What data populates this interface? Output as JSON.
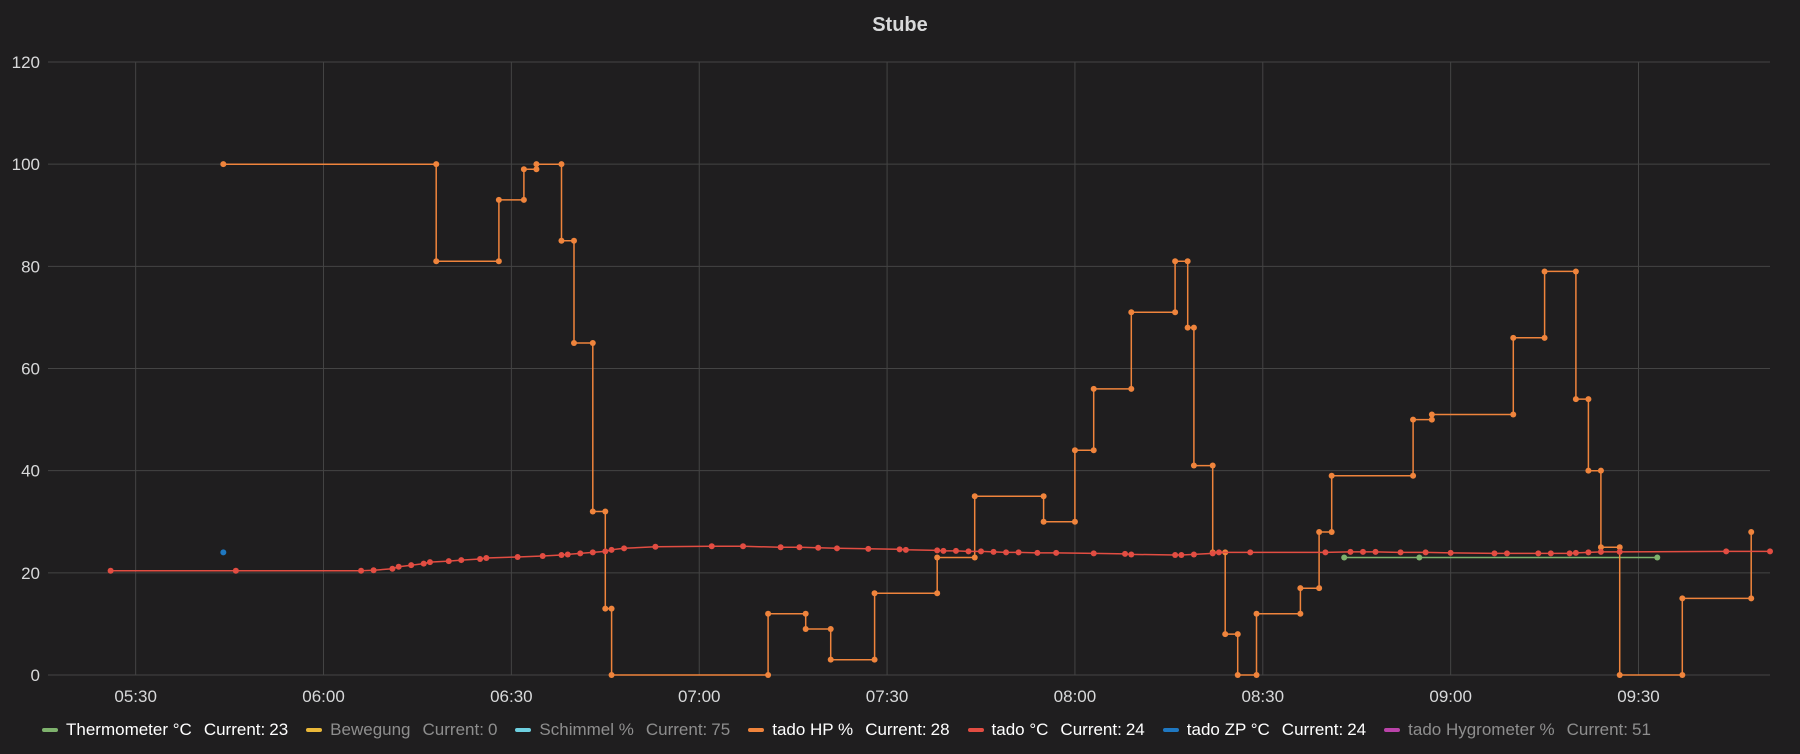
{
  "panel": {
    "title": "Stube"
  },
  "legend_current_label": "Current:",
  "chart_data": {
    "type": "line",
    "title": "Stube",
    "xlabel": "",
    "ylabel": "",
    "ylim": [
      0,
      120
    ],
    "yticks": [
      0,
      20,
      40,
      60,
      80,
      100,
      120
    ],
    "xlim": [
      "05:16",
      "09:51"
    ],
    "xticks": [
      "05:30",
      "06:00",
      "06:30",
      "07:00",
      "07:30",
      "08:00",
      "08:30",
      "09:00",
      "09:30"
    ],
    "grid": true,
    "legend_position": "bottom",
    "series": [
      {
        "name": "Thermometer °C",
        "color": "#7eb26d",
        "current": "23",
        "dim": false,
        "step": false,
        "points": [
          [
            "08:43",
            23
          ],
          [
            "08:55",
            23
          ],
          [
            "09:33",
            23
          ]
        ]
      },
      {
        "name": "Bewegung",
        "color": "#eab839",
        "current": "0",
        "dim": true,
        "step": false,
        "points": []
      },
      {
        "name": "Schimmel %",
        "color": "#6ed0e0",
        "current": "75",
        "dim": true,
        "step": false,
        "points": []
      },
      {
        "name": "tado HP %",
        "color": "#ef843c",
        "current": "28",
        "dim": false,
        "step": true,
        "points": [
          [
            "05:44",
            100
          ],
          [
            "06:18",
            100
          ],
          [
            "06:18",
            81
          ],
          [
            "06:28",
            81
          ],
          [
            "06:28",
            93
          ],
          [
            "06:32",
            93
          ],
          [
            "06:32",
            99
          ],
          [
            "06:34",
            99
          ],
          [
            "06:34",
            100
          ],
          [
            "06:38",
            100
          ],
          [
            "06:38",
            85
          ],
          [
            "06:40",
            85
          ],
          [
            "06:40",
            65
          ],
          [
            "06:43",
            65
          ],
          [
            "06:43",
            32
          ],
          [
            "06:45",
            32
          ],
          [
            "06:45",
            13
          ],
          [
            "06:46",
            13
          ],
          [
            "06:46",
            0
          ],
          [
            "07:11",
            0
          ],
          [
            "07:11",
            12
          ],
          [
            "07:17",
            12
          ],
          [
            "07:17",
            9
          ],
          [
            "07:21",
            9
          ],
          [
            "07:21",
            3
          ],
          [
            "07:28",
            3
          ],
          [
            "07:28",
            16
          ],
          [
            "07:38",
            16
          ],
          [
            "07:38",
            23
          ],
          [
            "07:44",
            23
          ],
          [
            "07:44",
            35
          ],
          [
            "07:55",
            35
          ],
          [
            "07:55",
            30
          ],
          [
            "08:00",
            30
          ],
          [
            "08:00",
            44
          ],
          [
            "08:03",
            44
          ],
          [
            "08:03",
            56
          ],
          [
            "08:09",
            56
          ],
          [
            "08:09",
            71
          ],
          [
            "08:16",
            71
          ],
          [
            "08:16",
            81
          ],
          [
            "08:18",
            81
          ],
          [
            "08:18",
            68
          ],
          [
            "08:19",
            68
          ],
          [
            "08:19",
            41
          ],
          [
            "08:22",
            41
          ],
          [
            "08:22",
            24
          ],
          [
            "08:24",
            24
          ],
          [
            "08:24",
            8
          ],
          [
            "08:26",
            8
          ],
          [
            "08:26",
            0
          ],
          [
            "08:29",
            0
          ],
          [
            "08:29",
            12
          ],
          [
            "08:36",
            12
          ],
          [
            "08:36",
            17
          ],
          [
            "08:39",
            17
          ],
          [
            "08:39",
            28
          ],
          [
            "08:41",
            28
          ],
          [
            "08:41",
            39
          ],
          [
            "08:54",
            39
          ],
          [
            "08:54",
            50
          ],
          [
            "08:57",
            50
          ],
          [
            "08:57",
            51
          ],
          [
            "09:10",
            51
          ],
          [
            "09:10",
            66
          ],
          [
            "09:15",
            66
          ],
          [
            "09:15",
            79
          ],
          [
            "09:20",
            79
          ],
          [
            "09:20",
            54
          ],
          [
            "09:22",
            54
          ],
          [
            "09:22",
            40
          ],
          [
            "09:24",
            40
          ],
          [
            "09:24",
            25
          ],
          [
            "09:27",
            25
          ],
          [
            "09:27",
            0
          ],
          [
            "09:37",
            0
          ],
          [
            "09:37",
            15
          ],
          [
            "09:48",
            15
          ],
          [
            "09:48",
            28
          ]
        ]
      },
      {
        "name": "tado °C",
        "color": "#e24d42",
        "current": "24",
        "dim": false,
        "step": false,
        "points": [
          [
            "05:26",
            20.4
          ],
          [
            "05:46",
            20.4
          ],
          [
            "06:06",
            20.4
          ],
          [
            "06:08",
            20.5
          ],
          [
            "06:11",
            20.8
          ],
          [
            "06:12",
            21.2
          ],
          [
            "06:14",
            21.5
          ],
          [
            "06:16",
            21.8
          ],
          [
            "06:17",
            22.1
          ],
          [
            "06:20",
            22.3
          ],
          [
            "06:22",
            22.5
          ],
          [
            "06:25",
            22.7
          ],
          [
            "06:26",
            22.9
          ],
          [
            "06:31",
            23.1
          ],
          [
            "06:35",
            23.3
          ],
          [
            "06:38",
            23.5
          ],
          [
            "06:39",
            23.6
          ],
          [
            "06:41",
            23.8
          ],
          [
            "06:43",
            24.0
          ],
          [
            "06:45",
            24.2
          ],
          [
            "06:46",
            24.5
          ],
          [
            "06:48",
            24.8
          ],
          [
            "06:53",
            25.1
          ],
          [
            "07:02",
            25.2
          ],
          [
            "07:07",
            25.2
          ],
          [
            "07:13",
            25.0
          ],
          [
            "07:16",
            25.0
          ],
          [
            "07:19",
            24.9
          ],
          [
            "07:22",
            24.8
          ],
          [
            "07:27",
            24.7
          ],
          [
            "07:32",
            24.6
          ],
          [
            "07:33",
            24.5
          ],
          [
            "07:38",
            24.4
          ],
          [
            "07:39",
            24.3
          ],
          [
            "07:41",
            24.3
          ],
          [
            "07:43",
            24.2
          ],
          [
            "07:45",
            24.2
          ],
          [
            "07:47",
            24.1
          ],
          [
            "07:49",
            24.0
          ],
          [
            "07:51",
            24.0
          ],
          [
            "07:54",
            23.9
          ],
          [
            "07:57",
            23.9
          ],
          [
            "08:03",
            23.8
          ],
          [
            "08:08",
            23.7
          ],
          [
            "08:09",
            23.6
          ],
          [
            "08:16",
            23.5
          ],
          [
            "08:17",
            23.5
          ],
          [
            "08:19",
            23.6
          ],
          [
            "08:22",
            23.8
          ],
          [
            "08:23",
            24.0
          ],
          [
            "08:28",
            24.0
          ],
          [
            "08:40",
            24.0
          ],
          [
            "08:44",
            24.1
          ],
          [
            "08:46",
            24.1
          ],
          [
            "08:48",
            24.1
          ],
          [
            "08:52",
            24.0
          ],
          [
            "08:56",
            24.0
          ],
          [
            "09:00",
            23.9
          ],
          [
            "09:07",
            23.8
          ],
          [
            "09:09",
            23.8
          ],
          [
            "09:14",
            23.8
          ],
          [
            "09:16",
            23.8
          ],
          [
            "09:19",
            23.8
          ],
          [
            "09:20",
            23.9
          ],
          [
            "09:22",
            24.0
          ],
          [
            "09:24",
            24.1
          ],
          [
            "09:27",
            24.1
          ],
          [
            "09:44",
            24.2
          ],
          [
            "09:51",
            24.2
          ]
        ]
      },
      {
        "name": "tado ZP °C",
        "color": "#1f78c1",
        "current": "24",
        "dim": false,
        "step": false,
        "points": [
          [
            "05:44",
            24
          ]
        ]
      },
      {
        "name": "tado Hygrometer %",
        "color": "#ba43a9",
        "current": "51",
        "dim": true,
        "step": false,
        "points": []
      }
    ]
  }
}
